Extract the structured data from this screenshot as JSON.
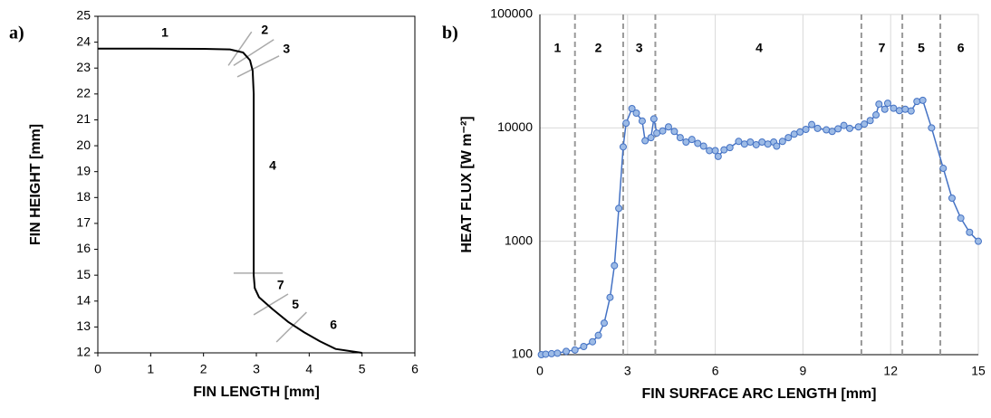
{
  "chart_data": [
    {
      "type": "line",
      "panel_label": "a)",
      "x_label": "FIN LENGTH [mm]",
      "y_label": "FIN HEIGHT [mm]",
      "xlim": [
        0,
        6
      ],
      "ylim": [
        12,
        25
      ],
      "xticks": [
        0,
        1,
        2,
        3,
        4,
        5,
        6
      ],
      "yticks": [
        12,
        13,
        14,
        15,
        16,
        17,
        18,
        19,
        20,
        21,
        22,
        23,
        24,
        25
      ],
      "grid": false,
      "series": [
        {
          "color": "#000000",
          "x": [
            0,
            1,
            2,
            2.5,
            2.75,
            2.88,
            2.93,
            2.95,
            2.95,
            2.97,
            3.05,
            3.3,
            3.6,
            3.9,
            4.2,
            4.5,
            5
          ],
          "values": [
            23.75,
            23.75,
            23.74,
            23.72,
            23.6,
            23.3,
            22.9,
            22,
            15,
            14.5,
            14.15,
            13.7,
            13.2,
            12.8,
            12.45,
            12.15,
            12
          ]
        }
      ],
      "separator_color": "#aaaaaa",
      "separators": [
        [
          2.47,
          23.1,
          2.91,
          24.4
        ],
        [
          2.57,
          23.1,
          3.33,
          24.1
        ],
        [
          2.64,
          22.66,
          3.43,
          23.47
        ],
        [
          2.57,
          15.08,
          3.5,
          15.08
        ],
        [
          2.95,
          13.47,
          3.6,
          14.27
        ],
        [
          3.38,
          12.42,
          3.95,
          13.57
        ]
      ],
      "annotations": [
        {
          "text": "1",
          "x": 1.27,
          "y": 24.34
        },
        {
          "text": "2",
          "x": 3.16,
          "y": 24.45
        },
        {
          "text": "3",
          "x": 3.57,
          "y": 23.71
        },
        {
          "text": "4",
          "x": 3.31,
          "y": 19.2
        },
        {
          "text": "7",
          "x": 3.46,
          "y": 14.59
        },
        {
          "text": "5",
          "x": 3.74,
          "y": 13.85
        },
        {
          "text": "6",
          "x": 4.46,
          "y": 13.05
        }
      ]
    },
    {
      "type": "line",
      "panel_label": "b)",
      "x_label": "FIN SURFACE ARC LENGTH [mm]",
      "y_label": "HEAT FLUX [W m⁻²]",
      "xlim": [
        0,
        15
      ],
      "ylim": [
        100,
        100000
      ],
      "log_y": true,
      "xticks": [
        0,
        3,
        6,
        9,
        12,
        15
      ],
      "yticks": [
        100,
        1000,
        10000,
        100000
      ],
      "grid": true,
      "series": [
        {
          "color": "#4472c4",
          "marker_fill": "#9dbbe6",
          "x": [
            0.05,
            0.2,
            0.4,
            0.6,
            0.9,
            1.2,
            1.5,
            1.8,
            2.0,
            2.2,
            2.4,
            2.55,
            2.7,
            2.85,
            2.95,
            3.15,
            3.3,
            3.5,
            3.6,
            3.8,
            3.9,
            4.0,
            4.2,
            4.4,
            4.6,
            4.8,
            5.0,
            5.2,
            5.4,
            5.6,
            5.8,
            6.0,
            6.1,
            6.3,
            6.5,
            6.8,
            7.0,
            7.2,
            7.4,
            7.6,
            7.8,
            8.0,
            8.1,
            8.3,
            8.5,
            8.7,
            8.9,
            9.1,
            9.3,
            9.5,
            9.8,
            10.0,
            10.2,
            10.4,
            10.6,
            10.9,
            11.1,
            11.3,
            11.5,
            11.6,
            11.8,
            11.9,
            12.1,
            12.3,
            12.5,
            12.7,
            12.9,
            13.1,
            13.4,
            13.8,
            14.1,
            14.4,
            14.7,
            15.0
          ],
          "values": [
            100,
            101,
            102,
            103,
            107,
            110,
            118,
            130,
            148,
            190,
            320,
            610,
            1950,
            6800,
            11000,
            14800,
            13500,
            11500,
            7700,
            8200,
            12000,
            9000,
            9400,
            10200,
            9300,
            8200,
            7500,
            7900,
            7300,
            6900,
            6300,
            6300,
            5600,
            6400,
            6700,
            7600,
            7200,
            7500,
            7100,
            7500,
            7200,
            7500,
            6900,
            7600,
            8200,
            8800,
            9200,
            9700,
            10700,
            9900,
            9600,
            9300,
            9800,
            10500,
            9900,
            10200,
            10800,
            11600,
            13000,
            16200,
            14600,
            16500,
            14900,
            14200,
            14600,
            14100,
            17100,
            17500,
            10000,
            4400,
            2400,
            1600,
            1200,
            1000
          ]
        }
      ],
      "divider_color": "#999999",
      "dividers": [
        1.2,
        2.85,
        3.95,
        11.0,
        12.4,
        13.7
      ],
      "annotations": [
        {
          "text": "1",
          "x": 0.6,
          "y": 50000
        },
        {
          "text": "2",
          "x": 2.0,
          "y": 50000
        },
        {
          "text": "3",
          "x": 3.4,
          "y": 50000
        },
        {
          "text": "4",
          "x": 7.5,
          "y": 50000
        },
        {
          "text": "7",
          "x": 11.7,
          "y": 50000
        },
        {
          "text": "5",
          "x": 13.05,
          "y": 50000
        },
        {
          "text": "6",
          "x": 14.4,
          "y": 50000
        }
      ]
    }
  ]
}
